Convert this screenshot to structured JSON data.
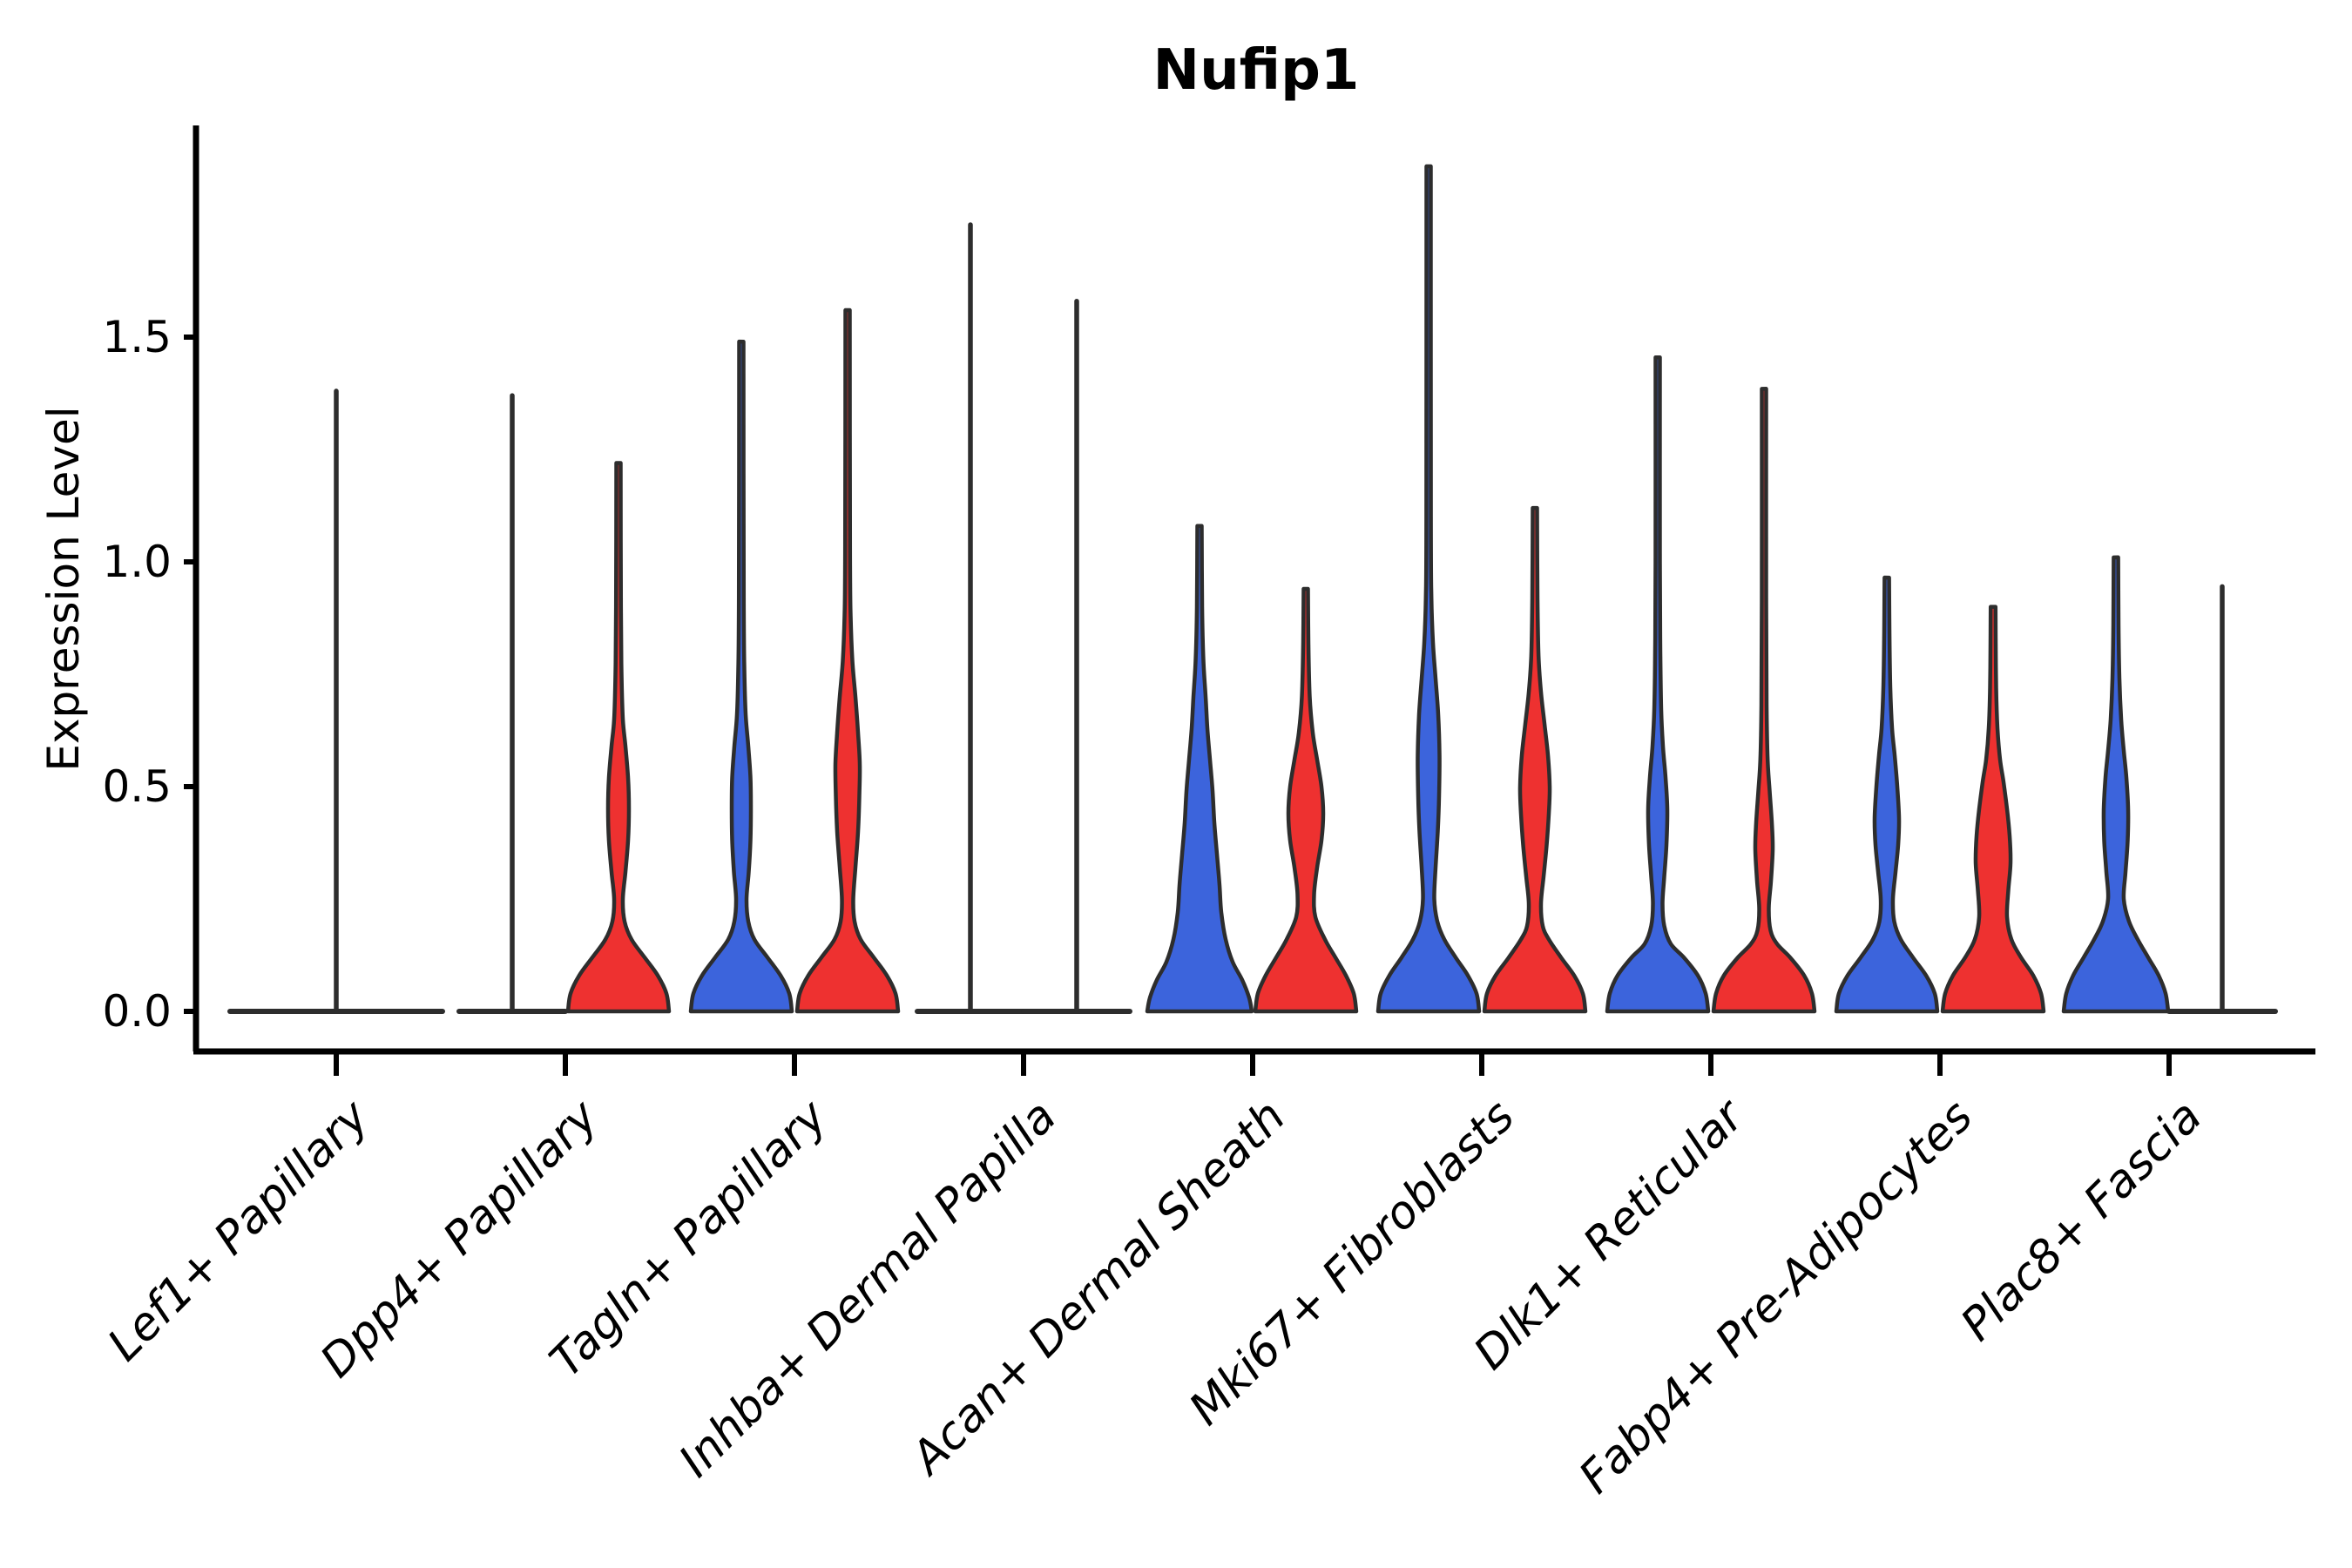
{
  "chart_data": {
    "type": "violin",
    "title": "Nufip1",
    "ylabel": "Expression Level",
    "xlabel": "",
    "ylim": [
      0,
      1.97
    ],
    "grid": false,
    "legend_position": "none",
    "yticks": {
      "values": [
        0,
        0.5,
        1.0,
        1.5
      ],
      "labels": [
        "0.0",
        "0.5",
        "1.0",
        "1.5"
      ]
    },
    "categories": [
      "Lef1+ Papillary",
      "Dpp4+ Papillary",
      "Tagln+ Papillary",
      "Inhba+ Dermal Papilla",
      "Acan+ Dermal Sheath",
      "Mki67+ Fibroblasts",
      "Dlk1+ Reticular",
      "Fabp4+ Pre-Adipocytes",
      "Plac8+ Fascia"
    ],
    "series": [
      {
        "name": "blue",
        "color": "#3C64DC"
      },
      {
        "name": "red",
        "color": "#EE3130"
      }
    ],
    "edge_color": "#2d2d2d",
    "violins": [
      {
        "category": "Lef1+ Papillary",
        "category_index": 0,
        "series": "single",
        "position": "center",
        "shape": "flat",
        "max": 1.38,
        "half_width": 122
      },
      {
        "category": "Dpp4+ Papillary",
        "category_index": 1,
        "series": "blue",
        "position": "left",
        "shape": "flat",
        "max": 1.37,
        "half_width": 61
      },
      {
        "category": "Dpp4+ Papillary",
        "category_index": 1,
        "series": "red",
        "position": "right",
        "shape": "curve",
        "max": 1.22,
        "half_width": 61,
        "profile": [
          [
            0,
            58
          ],
          [
            0.04,
            55
          ],
          [
            0.08,
            45
          ],
          [
            0.12,
            30
          ],
          [
            0.16,
            15
          ],
          [
            0.2,
            7
          ],
          [
            0.25,
            5
          ],
          [
            0.31,
            8
          ],
          [
            0.38,
            11
          ],
          [
            0.45,
            12
          ],
          [
            0.52,
            11
          ],
          [
            0.59,
            8
          ],
          [
            0.65,
            5
          ],
          [
            0.75,
            3.5
          ],
          [
            0.9,
            2.8
          ],
          [
            1.22,
            2.5
          ]
        ]
      },
      {
        "category": "Tagln+ Papillary",
        "category_index": 2,
        "series": "blue",
        "position": "left",
        "shape": "curve",
        "max": 1.49,
        "half_width": 61,
        "profile": [
          [
            0,
            58
          ],
          [
            0.04,
            55
          ],
          [
            0.08,
            45
          ],
          [
            0.12,
            30
          ],
          [
            0.16,
            15
          ],
          [
            0.2,
            8
          ],
          [
            0.25,
            6
          ],
          [
            0.31,
            8.5
          ],
          [
            0.38,
            10.5
          ],
          [
            0.45,
            11
          ],
          [
            0.52,
            10.5
          ],
          [
            0.59,
            8
          ],
          [
            0.66,
            5
          ],
          [
            0.76,
            3.5
          ],
          [
            0.92,
            2.8
          ],
          [
            1.49,
            2.5
          ]
        ]
      },
      {
        "category": "Tagln+ Papillary",
        "category_index": 2,
        "series": "red",
        "position": "right",
        "shape": "curve",
        "max": 1.56,
        "half_width": 61,
        "profile": [
          [
            0,
            58
          ],
          [
            0.04,
            55
          ],
          [
            0.08,
            45
          ],
          [
            0.12,
            30
          ],
          [
            0.16,
            15
          ],
          [
            0.2,
            8
          ],
          [
            0.25,
            6.5
          ],
          [
            0.32,
            9
          ],
          [
            0.4,
            12
          ],
          [
            0.48,
            13.5
          ],
          [
            0.55,
            14
          ],
          [
            0.62,
            12
          ],
          [
            0.7,
            9
          ],
          [
            0.78,
            5.5
          ],
          [
            0.88,
            3.5
          ],
          [
            1.02,
            2.8
          ],
          [
            1.56,
            2.5
          ]
        ]
      },
      {
        "category": "Inhba+ Dermal Papilla",
        "category_index": 3,
        "series": "blue",
        "position": "left",
        "shape": "flat",
        "max": 1.75,
        "half_width": 61
      },
      {
        "category": "Inhba+ Dermal Papilla",
        "category_index": 3,
        "series": "red",
        "position": "right",
        "shape": "flat",
        "max": 1.58,
        "half_width": 61
      },
      {
        "category": "Acan+ Dermal Sheath",
        "category_index": 4,
        "series": "blue",
        "position": "left",
        "shape": "curve",
        "max": 1.08,
        "half_width": 61,
        "profile": [
          [
            0,
            60
          ],
          [
            0.03,
            57
          ],
          [
            0.07,
            49
          ],
          [
            0.11,
            38
          ],
          [
            0.16,
            30
          ],
          [
            0.22,
            25
          ],
          [
            0.28,
            23
          ],
          [
            0.35,
            20
          ],
          [
            0.42,
            17
          ],
          [
            0.49,
            15
          ],
          [
            0.56,
            12
          ],
          [
            0.63,
            9
          ],
          [
            0.7,
            7
          ],
          [
            0.78,
            4.5
          ],
          [
            0.9,
            3
          ],
          [
            1.08,
            2.5
          ]
        ]
      },
      {
        "category": "Acan+ Dermal Sheath",
        "category_index": 4,
        "series": "red",
        "position": "right",
        "shape": "curve",
        "max": 0.94,
        "half_width": 61,
        "profile": [
          [
            0,
            58
          ],
          [
            0.04,
            55
          ],
          [
            0.08,
            46
          ],
          [
            0.12,
            34
          ],
          [
            0.16,
            22
          ],
          [
            0.21,
            11
          ],
          [
            0.26,
            9.5
          ],
          [
            0.32,
            13
          ],
          [
            0.38,
            18
          ],
          [
            0.44,
            20
          ],
          [
            0.5,
            18
          ],
          [
            0.56,
            13
          ],
          [
            0.62,
            8
          ],
          [
            0.7,
            4.5
          ],
          [
            0.82,
            3
          ],
          [
            0.94,
            2.5
          ]
        ]
      },
      {
        "category": "Mki67+ Fibroblasts",
        "category_index": 5,
        "series": "blue",
        "position": "left",
        "shape": "curve",
        "max": 1.88,
        "half_width": 61,
        "profile": [
          [
            0,
            58
          ],
          [
            0.04,
            55
          ],
          [
            0.08,
            45
          ],
          [
            0.12,
            31
          ],
          [
            0.16,
            18
          ],
          [
            0.2,
            10
          ],
          [
            0.25,
            6.5
          ],
          [
            0.32,
            8
          ],
          [
            0.4,
            10.5
          ],
          [
            0.48,
            12
          ],
          [
            0.57,
            12.5
          ],
          [
            0.66,
            11
          ],
          [
            0.74,
            8
          ],
          [
            0.82,
            5
          ],
          [
            0.92,
            3.2
          ],
          [
            1.1,
            2.6
          ],
          [
            1.88,
            2.5
          ]
        ]
      },
      {
        "category": "Mki67+ Fibroblasts",
        "category_index": 5,
        "series": "red",
        "position": "right",
        "shape": "curve",
        "max": 1.12,
        "half_width": 61,
        "profile": [
          [
            0,
            58
          ],
          [
            0.04,
            55
          ],
          [
            0.08,
            45
          ],
          [
            0.12,
            30
          ],
          [
            0.16,
            16
          ],
          [
            0.19,
            9
          ],
          [
            0.24,
            7
          ],
          [
            0.3,
            10
          ],
          [
            0.37,
            13.5
          ],
          [
            0.44,
            16
          ],
          [
            0.5,
            17
          ],
          [
            0.57,
            15
          ],
          [
            0.64,
            11
          ],
          [
            0.71,
            7
          ],
          [
            0.79,
            4.2
          ],
          [
            0.92,
            3
          ],
          [
            1.12,
            2.5
          ]
        ]
      },
      {
        "category": "Dlk1+ Reticular",
        "category_index": 6,
        "series": "blue",
        "position": "left",
        "shape": "curve",
        "max": 1.455,
        "half_width": 61,
        "profile": [
          [
            0,
            58
          ],
          [
            0.04,
            55
          ],
          [
            0.08,
            46
          ],
          [
            0.12,
            30
          ],
          [
            0.15,
            15
          ],
          [
            0.19,
            7.5
          ],
          [
            0.24,
            5.5
          ],
          [
            0.3,
            7.5
          ],
          [
            0.37,
            10
          ],
          [
            0.45,
            11
          ],
          [
            0.52,
            9
          ],
          [
            0.59,
            6
          ],
          [
            0.67,
            4
          ],
          [
            0.8,
            3
          ],
          [
            1.0,
            2.5
          ],
          [
            1.455,
            2.5
          ]
        ]
      },
      {
        "category": "Dlk1+ Reticular",
        "category_index": 6,
        "series": "red",
        "position": "right",
        "shape": "curve",
        "max": 1.385,
        "half_width": 61,
        "profile": [
          [
            0,
            58
          ],
          [
            0.04,
            55
          ],
          [
            0.08,
            46
          ],
          [
            0.12,
            30
          ],
          [
            0.15,
            15
          ],
          [
            0.18,
            7.5
          ],
          [
            0.23,
            5.5
          ],
          [
            0.29,
            8
          ],
          [
            0.36,
            10
          ],
          [
            0.42,
            9
          ],
          [
            0.49,
            6.5
          ],
          [
            0.56,
            4.2
          ],
          [
            0.68,
            3
          ],
          [
            0.92,
            2.5
          ],
          [
            1.385,
            2.5
          ]
        ]
      },
      {
        "category": "Fabp4+ Pre-Adipocytes",
        "category_index": 7,
        "series": "blue",
        "position": "left",
        "shape": "curve",
        "max": 0.965,
        "half_width": 61,
        "profile": [
          [
            0,
            58
          ],
          [
            0.04,
            55
          ],
          [
            0.08,
            45
          ],
          [
            0.12,
            30
          ],
          [
            0.16,
            16
          ],
          [
            0.2,
            8.5
          ],
          [
            0.25,
            7
          ],
          [
            0.31,
            10
          ],
          [
            0.37,
            13
          ],
          [
            0.43,
            14
          ],
          [
            0.5,
            12
          ],
          [
            0.57,
            9
          ],
          [
            0.63,
            6
          ],
          [
            0.72,
            4
          ],
          [
            0.85,
            3
          ],
          [
            0.965,
            2.6
          ]
        ]
      },
      {
        "category": "Fabp4+ Pre-Adipocytes",
        "category_index": 7,
        "series": "red",
        "position": "right",
        "shape": "curve",
        "max": 0.9,
        "half_width": 61,
        "profile": [
          [
            0,
            58
          ],
          [
            0.04,
            55
          ],
          [
            0.08,
            46
          ],
          [
            0.12,
            32
          ],
          [
            0.16,
            21
          ],
          [
            0.21,
            16
          ],
          [
            0.27,
            17.5
          ],
          [
            0.33,
            20
          ],
          [
            0.39,
            19
          ],
          [
            0.45,
            16
          ],
          [
            0.51,
            12
          ],
          [
            0.56,
            8
          ],
          [
            0.63,
            5
          ],
          [
            0.72,
            3.5
          ],
          [
            0.82,
            3
          ],
          [
            0.9,
            2.8
          ]
        ]
      },
      {
        "category": "Plac8+ Fascia",
        "category_index": 8,
        "series": "blue",
        "position": "left",
        "shape": "curve",
        "max": 1.01,
        "half_width": 61,
        "profile": [
          [
            0,
            60
          ],
          [
            0.04,
            57
          ],
          [
            0.08,
            49
          ],
          [
            0.12,
            37
          ],
          [
            0.16,
            25
          ],
          [
            0.2,
            15
          ],
          [
            0.25,
            9
          ],
          [
            0.31,
            11
          ],
          [
            0.38,
            13.5
          ],
          [
            0.45,
            14
          ],
          [
            0.52,
            12
          ],
          [
            0.58,
            9
          ],
          [
            0.65,
            6
          ],
          [
            0.74,
            4
          ],
          [
            0.86,
            3
          ],
          [
            1.01,
            2.6
          ]
        ]
      },
      {
        "category": "Plac8+ Fascia",
        "category_index": 8,
        "series": "red",
        "position": "right",
        "shape": "flat",
        "max": 0.945,
        "half_width": 61
      }
    ]
  }
}
